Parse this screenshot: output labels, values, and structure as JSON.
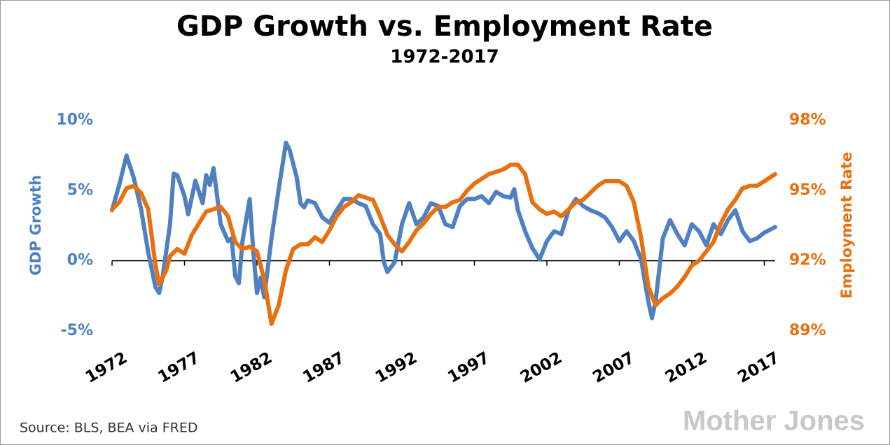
{
  "chart_data": {
    "type": "line",
    "title": "GDP Growth vs. Employment Rate",
    "subtitle": "1972-2017",
    "y_label": "GDP Growth",
    "y2_label": "Employment Rate",
    "source": "Source: BLS, BEA via FRED",
    "watermark": "Mother Jones",
    "xlim": [
      1972,
      2017.75
    ],
    "xticks": [
      1972,
      1977,
      1982,
      1987,
      1992,
      1997,
      2002,
      2007,
      2012,
      2017
    ],
    "ylim": [
      -5,
      10
    ],
    "yticks": [
      {
        "value": -5,
        "label": "-5%"
      },
      {
        "value": 0,
        "label": "0%"
      },
      {
        "value": 5,
        "label": "5%"
      },
      {
        "value": 10,
        "label": "10%"
      }
    ],
    "y2lim": [
      89,
      98
    ],
    "y2ticks": [
      {
        "value": 89,
        "label": "89%"
      },
      {
        "value": 92,
        "label": "92%"
      },
      {
        "value": 95,
        "label": "95%"
      },
      {
        "value": 98,
        "label": "98%"
      }
    ],
    "xaxis_at": 0,
    "series": [
      {
        "name": "GDP Growth",
        "color": "#4f81c2",
        "axis": "y",
        "x": [
          1972.0,
          1972.5,
          1973.0,
          1973.5,
          1974.0,
          1974.5,
          1975.0,
          1975.25,
          1975.5,
          1976.0,
          1976.25,
          1976.5,
          1977.0,
          1977.25,
          1977.75,
          1978.25,
          1978.5,
          1978.75,
          1979.0,
          1979.5,
          1980.0,
          1980.25,
          1980.5,
          1980.75,
          1981.0,
          1981.5,
          1981.75,
          1982.0,
          1982.25,
          1982.5,
          1983.0,
          1983.5,
          1984.0,
          1984.25,
          1984.75,
          1985.0,
          1985.25,
          1985.5,
          1986.0,
          1986.5,
          1987.0,
          1987.5,
          1988.0,
          1988.5,
          1989.0,
          1989.5,
          1990.0,
          1990.5,
          1990.75,
          1991.0,
          1991.5,
          1992.0,
          1992.5,
          1993.0,
          1993.5,
          1994.0,
          1994.5,
          1995.0,
          1995.5,
          1996.0,
          1996.5,
          1997.0,
          1997.5,
          1998.0,
          1998.5,
          1999.0,
          1999.5,
          1999.75,
          2000.0,
          2000.5,
          2001.0,
          2001.5,
          2002.0,
          2002.5,
          2003.0,
          2003.5,
          2004.0,
          2004.5,
          2005.0,
          2005.5,
          2006.0,
          2006.5,
          2007.0,
          2007.5,
          2008.0,
          2008.5,
          2009.0,
          2009.25,
          2009.5,
          2010.0,
          2010.5,
          2011.0,
          2011.5,
          2012.0,
          2012.5,
          2013.0,
          2013.5,
          2014.0,
          2014.5,
          2015.0,
          2015.5,
          2016.0,
          2016.5,
          2017.0,
          2017.75
        ],
        "values": [
          3.6,
          5.4,
          7.5,
          5.9,
          3.7,
          0.6,
          -1.9,
          -2.3,
          -1.1,
          2.6,
          6.2,
          6.1,
          4.6,
          3.3,
          5.7,
          4.1,
          6.1,
          5.4,
          6.6,
          2.6,
          1.4,
          1.6,
          -1.1,
          -1.6,
          1.4,
          4.4,
          0.6,
          -2.3,
          -1.2,
          -2.6,
          1.6,
          5.1,
          8.4,
          7.9,
          5.9,
          4.1,
          3.8,
          4.3,
          4.1,
          3.1,
          2.7,
          3.6,
          4.4,
          4.4,
          4.1,
          3.9,
          2.6,
          1.9,
          -0.1,
          -0.8,
          -0.1,
          2.6,
          4.1,
          2.6,
          3.1,
          4.1,
          3.9,
          2.6,
          2.4,
          3.9,
          4.4,
          4.4,
          4.6,
          4.1,
          4.9,
          4.6,
          4.5,
          5.1,
          3.6,
          2.1,
          0.9,
          0.1,
          1.4,
          2.1,
          1.9,
          3.6,
          4.4,
          3.9,
          3.6,
          3.4,
          3.1,
          2.4,
          1.4,
          2.1,
          1.4,
          0.1,
          -2.9,
          -4.1,
          -2.9,
          1.6,
          2.9,
          1.9,
          1.1,
          2.6,
          2.1,
          1.1,
          2.6,
          1.9,
          2.9,
          3.6,
          2.1,
          1.4,
          1.6,
          2.0,
          2.4
        ]
      },
      {
        "name": "Employment Rate",
        "color": "#e8700e",
        "axis": "y2",
        "x": [
          1972.0,
          1972.5,
          1973.0,
          1973.5,
          1974.0,
          1974.5,
          1975.0,
          1975.25,
          1975.75,
          1976.0,
          1976.5,
          1977.0,
          1977.5,
          1978.0,
          1978.5,
          1979.0,
          1979.5,
          1980.0,
          1980.5,
          1981.0,
          1981.5,
          1982.0,
          1982.5,
          1983.0,
          1983.5,
          1984.0,
          1984.5,
          1985.0,
          1985.5,
          1986.0,
          1986.5,
          1987.0,
          1987.5,
          1988.0,
          1988.5,
          1989.0,
          1989.5,
          1990.0,
          1990.5,
          1991.0,
          1991.5,
          1992.0,
          1992.5,
          1993.0,
          1993.5,
          1994.0,
          1994.5,
          1995.0,
          1995.5,
          1996.0,
          1996.5,
          1997.0,
          1997.5,
          1998.0,
          1998.5,
          1999.0,
          1999.5,
          2000.0,
          2000.5,
          2001.0,
          2001.5,
          2002.0,
          2002.5,
          2003.0,
          2003.5,
          2004.0,
          2004.5,
          2005.0,
          2005.5,
          2006.0,
          2006.5,
          2007.0,
          2007.5,
          2008.0,
          2008.5,
          2009.0,
          2009.5,
          2010.0,
          2010.5,
          2011.0,
          2011.5,
          2012.0,
          2012.5,
          2013.0,
          2013.5,
          2014.0,
          2014.5,
          2015.0,
          2015.5,
          2016.0,
          2016.5,
          2017.0,
          2017.75
        ],
        "values": [
          94.2,
          94.5,
          95.1,
          95.2,
          94.9,
          94.2,
          91.8,
          91.0,
          91.6,
          92.2,
          92.5,
          92.3,
          93.1,
          93.6,
          94.1,
          94.2,
          94.3,
          93.9,
          92.8,
          92.5,
          92.6,
          92.4,
          91.2,
          89.3,
          90.1,
          91.6,
          92.5,
          92.7,
          92.7,
          93.0,
          92.8,
          93.3,
          93.9,
          94.3,
          94.5,
          94.8,
          94.7,
          94.6,
          93.9,
          93.1,
          92.7,
          92.4,
          92.8,
          93.3,
          93.6,
          94.0,
          94.3,
          94.3,
          94.5,
          94.6,
          95.0,
          95.3,
          95.5,
          95.7,
          95.8,
          95.9,
          96.1,
          96.1,
          95.7,
          94.5,
          94.2,
          94.0,
          94.1,
          93.9,
          94.2,
          94.5,
          94.6,
          94.9,
          95.2,
          95.4,
          95.4,
          95.4,
          95.2,
          94.5,
          93.0,
          90.9,
          90.1,
          90.4,
          90.6,
          90.9,
          91.3,
          91.8,
          92.0,
          92.4,
          92.8,
          93.6,
          94.2,
          94.6,
          95.1,
          95.2,
          95.2,
          95.4,
          95.7
        ]
      }
    ]
  }
}
